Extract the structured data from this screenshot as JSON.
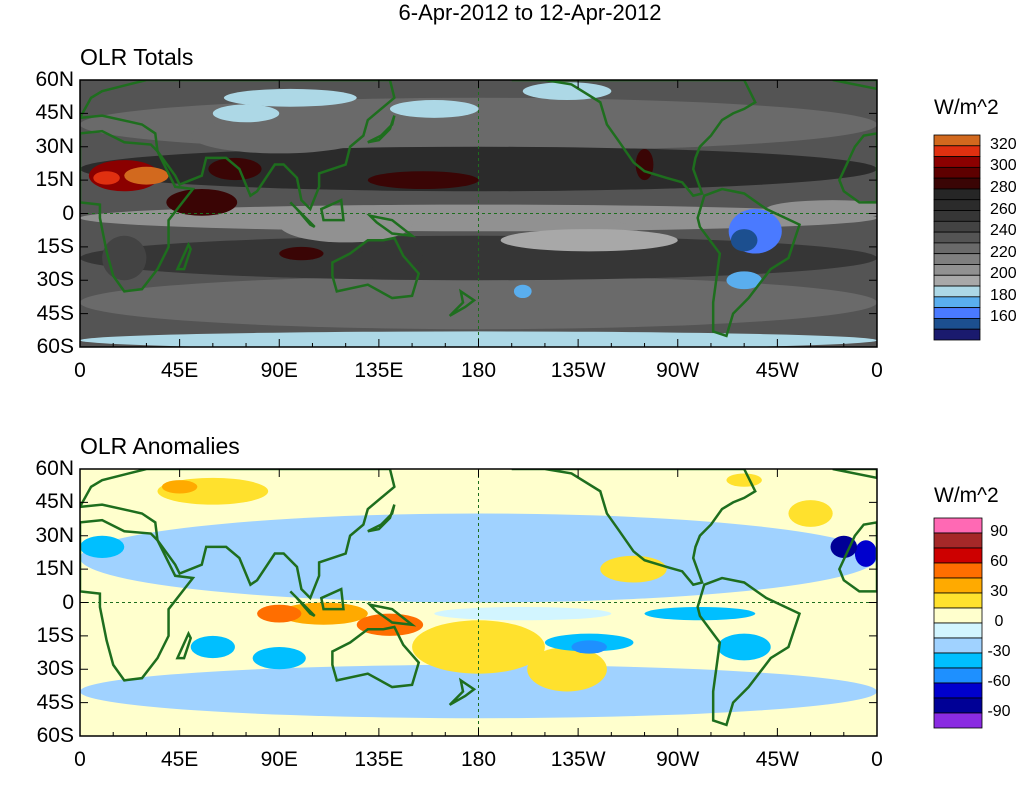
{
  "title": "6-Apr-2012 to 12-Apr-2012",
  "panels": [
    {
      "title": "OLR Totals",
      "units": "W/m^2",
      "colorbar": {
        "levels": [
          160,
          170,
          180,
          190,
          200,
          210,
          220,
          230,
          240,
          250,
          260,
          270,
          280,
          290,
          300,
          310,
          320,
          330
        ],
        "labels": [
          "320",
          "300",
          "280",
          "260",
          "240",
          "220",
          "200",
          "180",
          "160"
        ],
        "colors": [
          "#1a1a6e",
          "#1c4f8f",
          "#4a7aff",
          "#5aaeee",
          "#add8e6",
          "#a8a8a8",
          "#919191",
          "#7f7f7f",
          "#6a6a6a",
          "#545454",
          "#434343",
          "#363636",
          "#2b2b2b",
          "#262626",
          "#3a0505",
          "#5e0000",
          "#8b0000",
          "#e03010",
          "#d2691e"
        ]
      }
    },
    {
      "title": "OLR Anomalies",
      "units": "W/m^2",
      "colorbar": {
        "levels": [
          -90,
          -75,
          -60,
          -45,
          -30,
          -15,
          0,
          15,
          30,
          45,
          60,
          75,
          90
        ],
        "labels": [
          "90",
          "60",
          "30",
          "0",
          "-30",
          "-60",
          "-90"
        ],
        "colors": [
          "#8a2be2",
          "#000096",
          "#0000cd",
          "#1e90ff",
          "#00bfff",
          "#a0d2ff",
          "#d2f5ff",
          "#ffffcd",
          "#ffe12d",
          "#ffaa00",
          "#ff6e00",
          "#cd0000",
          "#a52828",
          "#ff69b4"
        ]
      }
    }
  ],
  "lat_ticks": [
    "60N",
    "45N",
    "30N",
    "15N",
    "0",
    "15S",
    "30S",
    "45S",
    "60S"
  ],
  "lon_ticks": [
    "0",
    "45E",
    "90E",
    "135E",
    "180",
    "135W",
    "90W",
    "45W",
    "0"
  ],
  "coastline_color": "#1e6e1e"
}
